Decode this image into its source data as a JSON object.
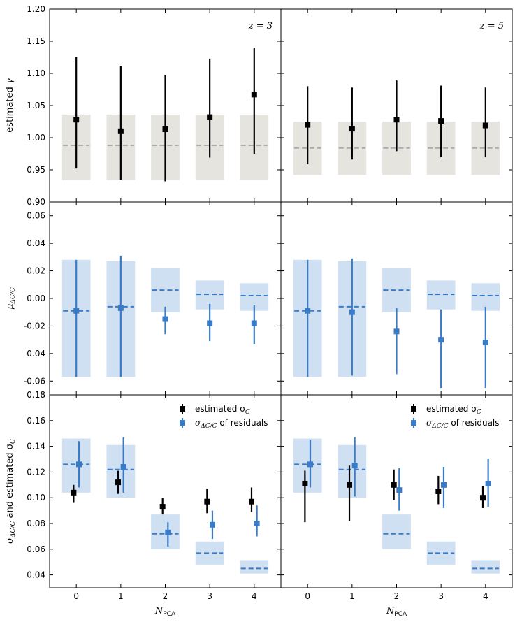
{
  "chart_data": {
    "type": "scatter",
    "description_panels": "2 columns x 3 rows of error-bar plots sharing x axis N_PCA",
    "xlabel_main": "N",
    "xlabel_sub": "PCA",
    "x_categories": [
      "0",
      "1",
      "2",
      "3",
      "4"
    ],
    "x_values": [
      0,
      1,
      2,
      3,
      4
    ],
    "xlim": [
      -0.6,
      4.6
    ],
    "columns": [
      {
        "label": "z = 3",
        "z": "3"
      },
      {
        "label": "z = 5",
        "z": "5"
      }
    ],
    "rows": [
      {
        "name": "gamma",
        "ylabel_main": "estimated",
        "ylabel_symbol": "γ",
        "ylim": [
          0.9,
          1.2
        ],
        "yticks": [
          "0.90",
          "0.95",
          "1.00",
          "1.05",
          "1.10",
          "1.15",
          "1.20"
        ],
        "ytick_values": [
          0.9,
          0.95,
          1.0,
          1.05,
          1.1,
          1.15,
          1.2
        ]
      },
      {
        "name": "mu",
        "ylabel_main": "μ",
        "ylabel_sub": "ΔC/C",
        "ylim": [
          -0.07,
          0.07
        ],
        "yticks": [
          "-0.06",
          "-0.04",
          "-0.02",
          "0.00",
          "0.02",
          "0.04",
          "0.06"
        ],
        "ytick_values": [
          -0.06,
          -0.04,
          -0.02,
          0.0,
          0.02,
          0.04,
          0.06
        ]
      },
      {
        "name": "sigma",
        "ylabel_main": "σ",
        "ylabel_sub": "ΔC/C",
        "ylabel_rest": " and estimated σ",
        "ylabel_rest_sub": "C",
        "ylim": [
          0.03,
          0.18
        ],
        "yticks": [
          "0.04",
          "0.06",
          "0.08",
          "0.10",
          "0.12",
          "0.14",
          "0.16",
          "0.18"
        ],
        "ytick_values": [
          0.04,
          0.06,
          0.08,
          0.1,
          0.12,
          0.14,
          0.16,
          0.18
        ]
      }
    ],
    "legend": [
      {
        "text": "estimated σ",
        "sub": "C",
        "color": "#000000"
      },
      {
        "text_pre": "σ",
        "sub": "ΔC/C",
        "text": " of residuals",
        "color": "#3a7bc8"
      }
    ],
    "colors": {
      "black": "#000000",
      "blue": "#3a7bc8",
      "gray_band": "#e5e4df",
      "gray_line": "#aaaaaa",
      "blue_band": "#cfe0f2",
      "blue_line": "#3a7bc8"
    },
    "panels": {
      "gamma_z3": {
        "bands": [
          [
            0.934,
            1.036
          ],
          [
            0.934,
            1.036
          ],
          [
            0.934,
            1.036
          ],
          [
            0.934,
            1.036
          ],
          [
            0.934,
            1.036
          ]
        ],
        "band_center": [
          0.988,
          0.988,
          0.988,
          0.988,
          0.988
        ],
        "black": {
          "y": [
            1.028,
            1.01,
            1.013,
            1.032,
            1.067
          ],
          "lo": [
            0.952,
            0.934,
            0.932,
            0.969,
            0.975
          ],
          "hi": [
            1.125,
            1.111,
            1.097,
            1.123,
            1.14
          ]
        }
      },
      "gamma_z5": {
        "bands": [
          [
            0.942,
            1.025
          ],
          [
            0.942,
            1.025
          ],
          [
            0.942,
            1.025
          ],
          [
            0.942,
            1.025
          ],
          [
            0.942,
            1.025
          ]
        ],
        "band_center": [
          0.984,
          0.984,
          0.984,
          0.984,
          0.984
        ],
        "black": {
          "y": [
            1.02,
            1.014,
            1.028,
            1.026,
            1.019
          ],
          "lo": [
            0.959,
            0.966,
            0.979,
            0.97,
            0.97
          ],
          "hi": [
            1.08,
            1.078,
            1.089,
            1.081,
            1.078
          ]
        }
      },
      "mu_z3": {
        "bands": [
          [
            -0.057,
            0.028
          ],
          [
            -0.057,
            0.027
          ],
          [
            -0.01,
            0.022
          ],
          [
            -0.008,
            0.013
          ],
          [
            -0.009,
            0.011
          ]
        ],
        "band_center": [
          -0.009,
          -0.006,
          0.006,
          0.003,
          0.002
        ],
        "blue": {
          "y": [
            -0.009,
            -0.007,
            -0.015,
            -0.018,
            -0.018
          ],
          "lo": [
            -0.057,
            -0.057,
            -0.026,
            -0.031,
            -0.033
          ],
          "hi": [
            0.028,
            0.031,
            -0.006,
            -0.004,
            -0.005
          ]
        }
      },
      "mu_z5": {
        "bands": [
          [
            -0.057,
            0.028
          ],
          [
            -0.057,
            0.027
          ],
          [
            -0.01,
            0.022
          ],
          [
            -0.008,
            0.013
          ],
          [
            -0.009,
            0.011
          ]
        ],
        "band_center": [
          -0.009,
          -0.006,
          0.006,
          0.003,
          0.002
        ],
        "blue": {
          "y": [
            -0.009,
            -0.01,
            -0.024,
            -0.03,
            -0.032
          ],
          "lo": [
            -0.057,
            -0.056,
            -0.055,
            -0.065,
            -0.065
          ],
          "hi": [
            0.028,
            0.029,
            -0.007,
            -0.008,
            -0.006
          ]
        }
      },
      "sigma_z3": {
        "bands": [
          [
            0.104,
            0.146
          ],
          [
            0.1,
            0.141
          ],
          [
            0.06,
            0.087
          ],
          [
            0.048,
            0.066
          ],
          [
            0.041,
            0.051
          ]
        ],
        "band_center": [
          0.126,
          0.122,
          0.072,
          0.057,
          0.045
        ],
        "black": {
          "y": [
            0.104,
            0.112,
            0.093,
            0.097,
            0.097
          ],
          "lo": [
            0.096,
            0.103,
            0.087,
            0.088,
            0.089
          ],
          "hi": [
            0.11,
            0.121,
            0.1,
            0.107,
            0.108
          ]
        },
        "blue": {
          "y": [
            0.126,
            0.124,
            0.073,
            0.079,
            0.08
          ],
          "lo": [
            0.108,
            0.104,
            0.062,
            0.068,
            0.07
          ],
          "hi": [
            0.144,
            0.147,
            0.081,
            0.09,
            0.094
          ]
        }
      },
      "sigma_z5": {
        "bands": [
          [
            0.104,
            0.146
          ],
          [
            0.1,
            0.141
          ],
          [
            0.06,
            0.087
          ],
          [
            0.048,
            0.066
          ],
          [
            0.041,
            0.051
          ]
        ],
        "band_center": [
          0.126,
          0.122,
          0.072,
          0.057,
          0.045
        ],
        "black": {
          "y": [
            0.111,
            0.11,
            0.11,
            0.105,
            0.1
          ],
          "lo": [
            0.081,
            0.082,
            0.098,
            0.095,
            0.092
          ],
          "hi": [
            0.121,
            0.125,
            0.122,
            0.117,
            0.109
          ]
        },
        "blue": {
          "y": [
            0.126,
            0.125,
            0.106,
            0.11,
            0.111
          ],
          "lo": [
            0.108,
            0.101,
            0.09,
            0.092,
            0.093
          ],
          "hi": [
            0.145,
            0.147,
            0.123,
            0.124,
            0.13
          ]
        }
      }
    }
  }
}
